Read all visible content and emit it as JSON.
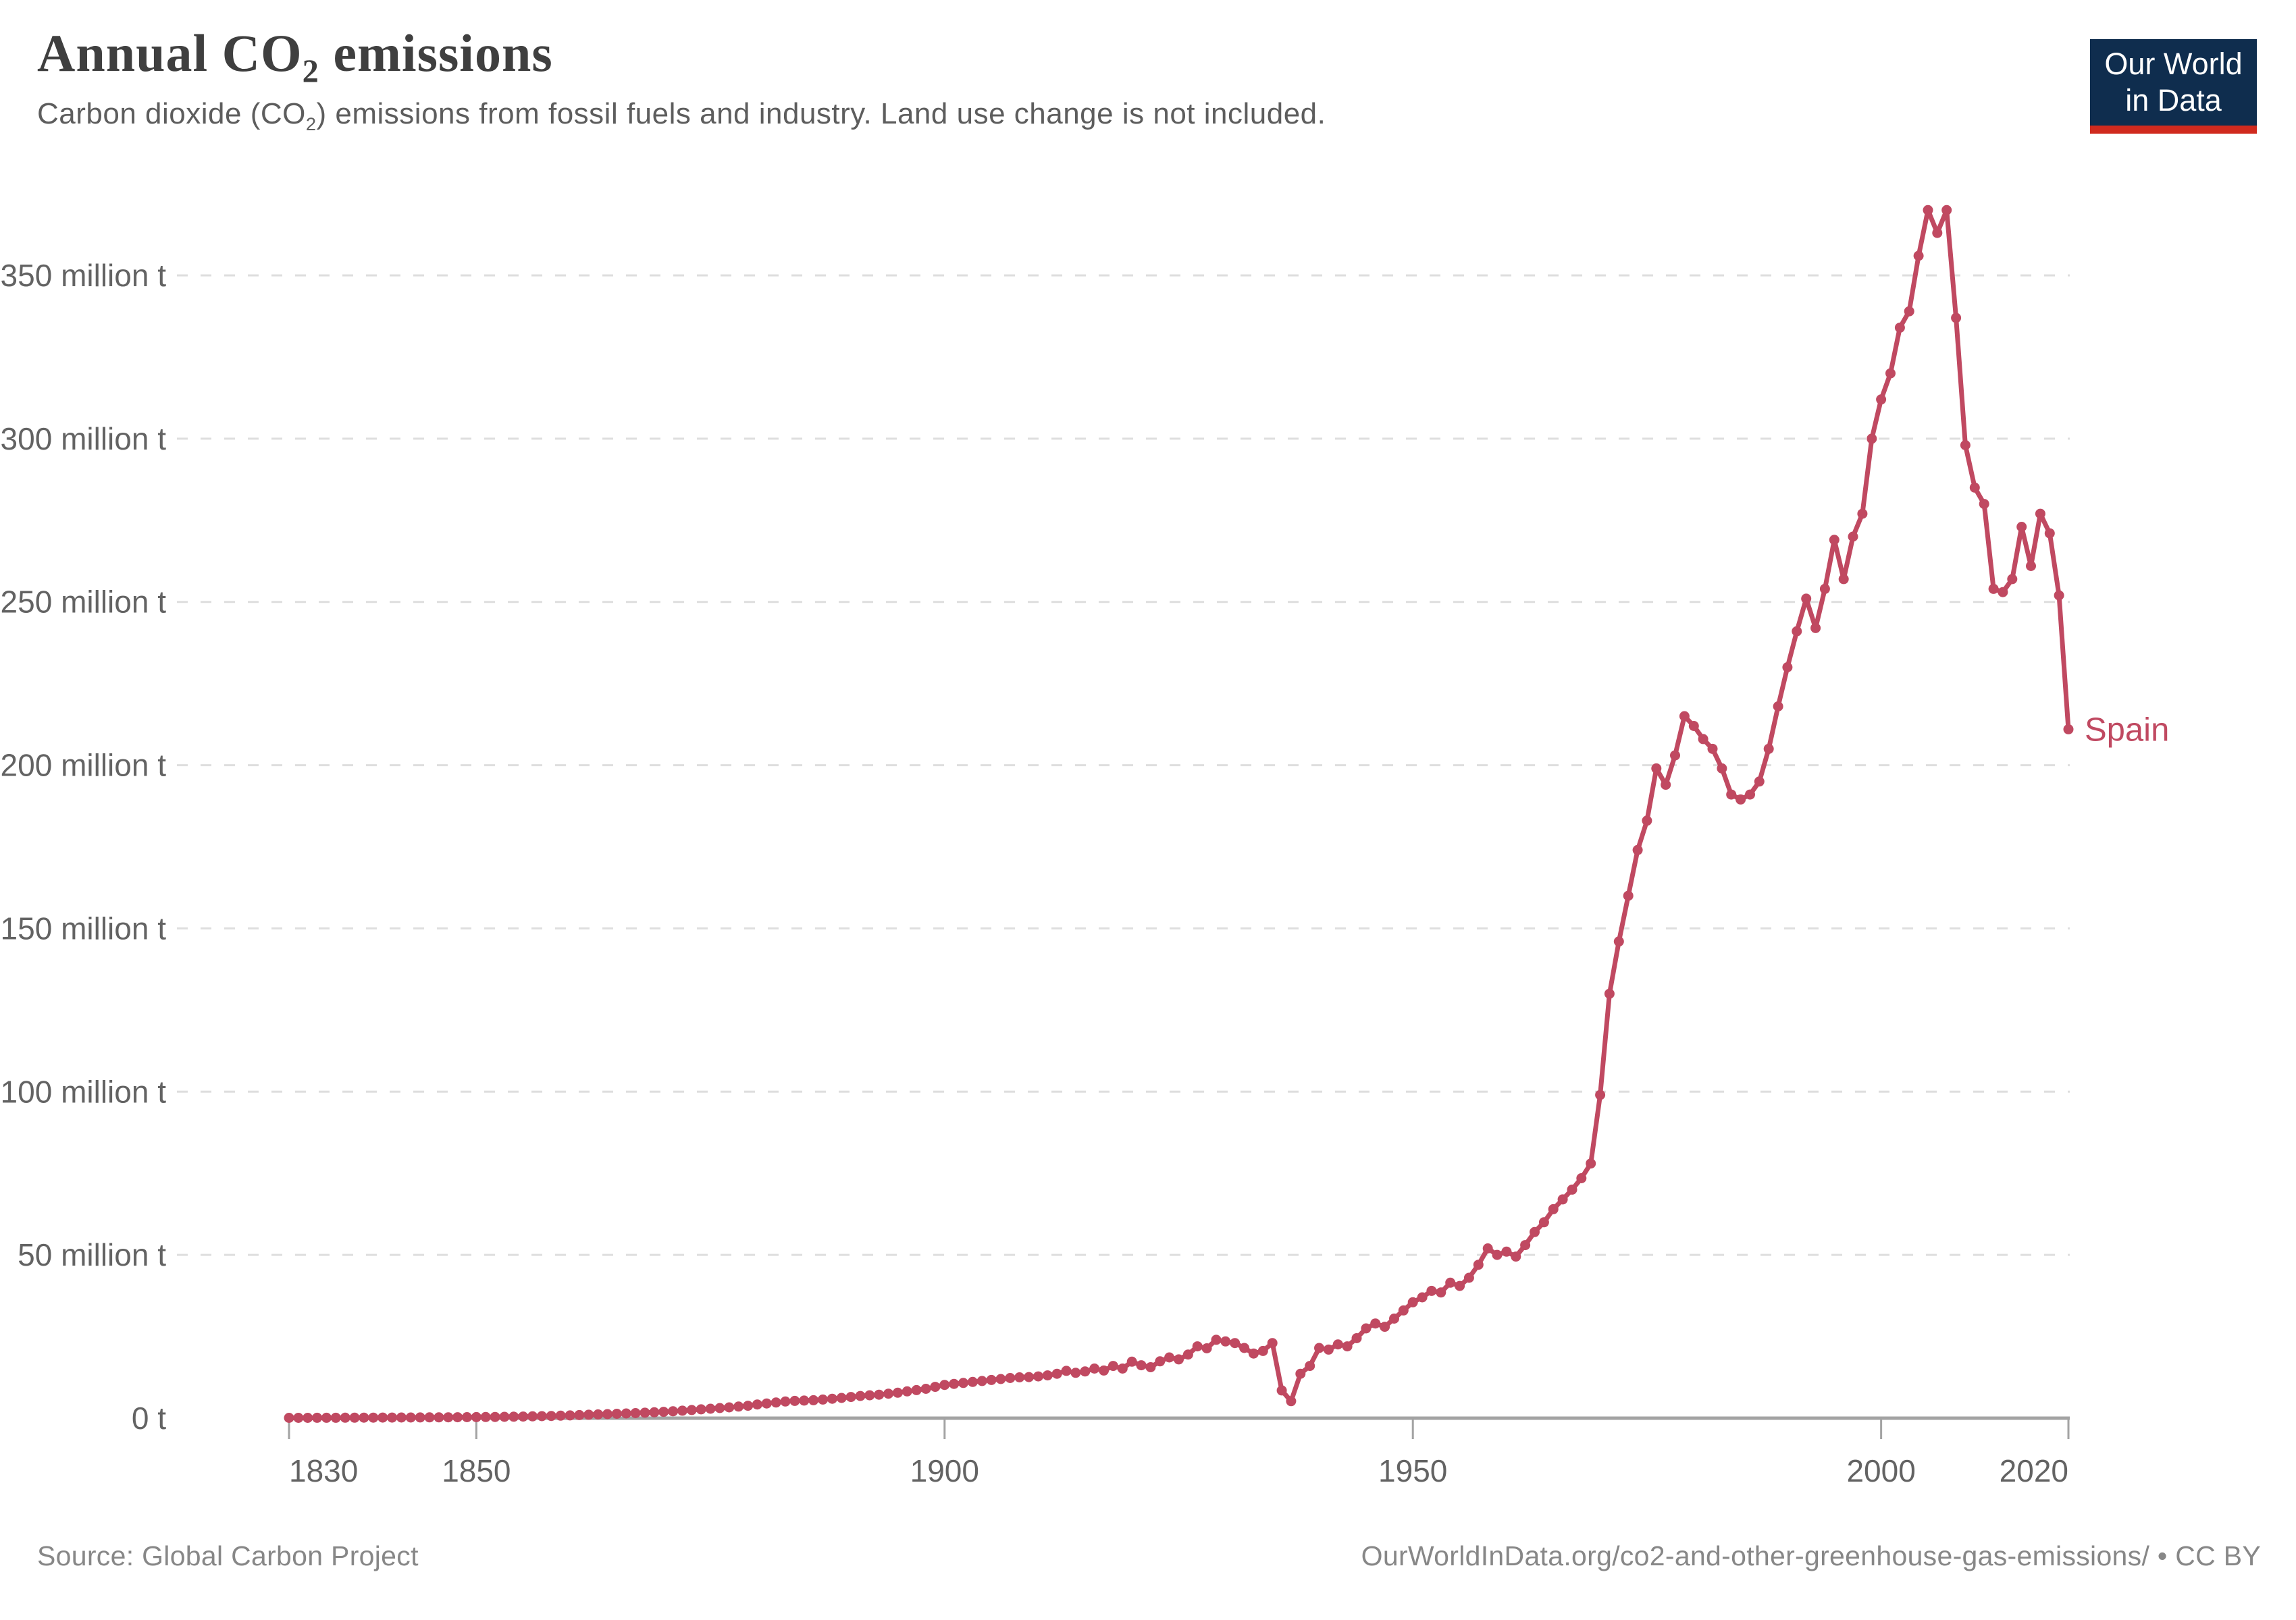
{
  "header": {
    "title": {
      "pre": "Annual CO",
      "sub": "2",
      "post": " emissions"
    },
    "subtitle": {
      "pre": "Carbon dioxide (CO",
      "sub": "2",
      "post": ") emissions from fossil fuels and industry. Land use change is not included."
    }
  },
  "logo": {
    "line1": "Our World",
    "line2": "in Data"
  },
  "footer": {
    "source": "Source: Global Carbon Project",
    "link": "OurWorldInData.org/co2-and-other-greenhouse-gas-emissions/ • CC BY"
  },
  "colors": {
    "series": "#c04961",
    "grid": "#dedede",
    "axis": "#a3a3a3",
    "tick_label": "#636363",
    "title": "#3f3f3f",
    "subtitle": "#5d5d5d",
    "footer": "#878787",
    "logo_bg": "#0f2d4e",
    "logo_accent": "#d02a1e"
  },
  "chart_data": {
    "type": "line",
    "title": "Annual CO2 emissions",
    "xlabel": "",
    "ylabel": "",
    "unit": "million tonnes CO2",
    "xlim": [
      1830,
      2020
    ],
    "ylim": [
      0,
      350
    ],
    "grid": "horizontal dashed",
    "legend_position": "end-of-line label",
    "xticks": [
      1830,
      1850,
      1900,
      1950,
      2000,
      2020
    ],
    "yticks": [
      0,
      50,
      100,
      150,
      200,
      250,
      300,
      350
    ],
    "ytick_labels": [
      "0 t",
      "50 million t",
      "100 million t",
      "150 million t",
      "200 million t",
      "250 million t",
      "300 million t",
      "350 million t"
    ],
    "end_label": "Spain",
    "series": [
      {
        "name": "Spain",
        "color": "#c04961",
        "points": [
          [
            1830,
            0.1
          ],
          [
            1831,
            0.1
          ],
          [
            1832,
            0.11
          ],
          [
            1833,
            0.12
          ],
          [
            1834,
            0.12
          ],
          [
            1835,
            0.13
          ],
          [
            1836,
            0.14
          ],
          [
            1837,
            0.15
          ],
          [
            1838,
            0.16
          ],
          [
            1839,
            0.17
          ],
          [
            1840,
            0.18
          ],
          [
            1841,
            0.19
          ],
          [
            1842,
            0.2
          ],
          [
            1843,
            0.21
          ],
          [
            1844,
            0.22
          ],
          [
            1845,
            0.24
          ],
          [
            1846,
            0.25
          ],
          [
            1847,
            0.27
          ],
          [
            1848,
            0.28
          ],
          [
            1849,
            0.3
          ],
          [
            1850,
            0.33
          ],
          [
            1851,
            0.35
          ],
          [
            1852,
            0.38
          ],
          [
            1853,
            0.41
          ],
          [
            1854,
            0.45
          ],
          [
            1855,
            0.5
          ],
          [
            1856,
            0.55
          ],
          [
            1857,
            0.61
          ],
          [
            1858,
            0.68
          ],
          [
            1859,
            0.76
          ],
          [
            1860,
            0.85
          ],
          [
            1861,
            0.95
          ],
          [
            1862,
            1.05
          ],
          [
            1863,
            1.15
          ],
          [
            1864,
            1.25
          ],
          [
            1865,
            1.35
          ],
          [
            1866,
            1.45
          ],
          [
            1867,
            1.55
          ],
          [
            1868,
            1.68
          ],
          [
            1869,
            1.8
          ],
          [
            1870,
            1.95
          ],
          [
            1871,
            2.1
          ],
          [
            1872,
            2.3
          ],
          [
            1873,
            2.5
          ],
          [
            1874,
            2.7
          ],
          [
            1875,
            2.9
          ],
          [
            1876,
            3.1
          ],
          [
            1877,
            3.3
          ],
          [
            1878,
            3.55
          ],
          [
            1879,
            3.8
          ],
          [
            1880,
            4.2
          ],
          [
            1881,
            4.5
          ],
          [
            1882,
            4.8
          ],
          [
            1883,
            5.1
          ],
          [
            1884,
            5.3
          ],
          [
            1885,
            5.4
          ],
          [
            1886,
            5.5
          ],
          [
            1887,
            5.7
          ],
          [
            1888,
            5.95
          ],
          [
            1889,
            6.2
          ],
          [
            1890,
            6.5
          ],
          [
            1891,
            6.8
          ],
          [
            1892,
            7.0
          ],
          [
            1893,
            7.2
          ],
          [
            1894,
            7.5
          ],
          [
            1895,
            7.8
          ],
          [
            1896,
            8.2
          ],
          [
            1897,
            8.6
          ],
          [
            1898,
            9.0
          ],
          [
            1899,
            9.6
          ],
          [
            1900,
            10.2
          ],
          [
            1901,
            10.5
          ],
          [
            1902,
            10.8
          ],
          [
            1903,
            11.1
          ],
          [
            1904,
            11.4
          ],
          [
            1905,
            11.7
          ],
          [
            1906,
            12.0
          ],
          [
            1907,
            12.3
          ],
          [
            1908,
            12.5
          ],
          [
            1909,
            12.6
          ],
          [
            1910,
            12.8
          ],
          [
            1911,
            13.1
          ],
          [
            1912,
            13.6
          ],
          [
            1913,
            14.5
          ],
          [
            1914,
            13.9
          ],
          [
            1915,
            14.3
          ],
          [
            1916,
            15.2
          ],
          [
            1917,
            14.6
          ],
          [
            1918,
            16.0
          ],
          [
            1919,
            15.2
          ],
          [
            1920,
            17.3
          ],
          [
            1921,
            16.2
          ],
          [
            1922,
            15.6
          ],
          [
            1923,
            17.4
          ],
          [
            1924,
            18.6
          ],
          [
            1925,
            18.0
          ],
          [
            1926,
            19.5
          ],
          [
            1927,
            22.0
          ],
          [
            1928,
            21.4
          ],
          [
            1929,
            24.0
          ],
          [
            1930,
            23.5
          ],
          [
            1931,
            23.0
          ],
          [
            1932,
            21.5
          ],
          [
            1933,
            19.8
          ],
          [
            1934,
            20.6
          ],
          [
            1935,
            23.0
          ],
          [
            1936,
            8.5
          ],
          [
            1937,
            5.2
          ],
          [
            1938,
            13.6
          ],
          [
            1939,
            16.0
          ],
          [
            1940,
            21.5
          ],
          [
            1941,
            21.0
          ],
          [
            1942,
            22.6
          ],
          [
            1943,
            22.0
          ],
          [
            1944,
            24.5
          ],
          [
            1945,
            27.5
          ],
          [
            1946,
            29.0
          ],
          [
            1947,
            28.0
          ],
          [
            1948,
            30.5
          ],
          [
            1949,
            33.0
          ],
          [
            1950,
            35.5
          ],
          [
            1951,
            37.0
          ],
          [
            1952,
            39.0
          ],
          [
            1953,
            38.5
          ],
          [
            1954,
            41.5
          ],
          [
            1955,
            40.5
          ],
          [
            1956,
            43.0
          ],
          [
            1957,
            47.0
          ],
          [
            1958,
            52.0
          ],
          [
            1959,
            50.0
          ],
          [
            1960,
            51.0
          ],
          [
            1961,
            49.5
          ],
          [
            1962,
            53.0
          ],
          [
            1963,
            57.0
          ],
          [
            1964,
            60.0
          ],
          [
            1965,
            64.0
          ],
          [
            1966,
            67.0
          ],
          [
            1967,
            70.0
          ],
          [
            1968,
            73.5
          ],
          [
            1969,
            78.0
          ],
          [
            1970,
            99.0
          ],
          [
            1971,
            130.0
          ],
          [
            1972,
            146.0
          ],
          [
            1973,
            160.0
          ],
          [
            1974,
            174.0
          ],
          [
            1975,
            183.0
          ],
          [
            1976,
            199.0
          ],
          [
            1977,
            194.0
          ],
          [
            1978,
            203.0
          ],
          [
            1979,
            215.0
          ],
          [
            1980,
            212.0
          ],
          [
            1981,
            208.0
          ],
          [
            1982,
            205.0
          ],
          [
            1983,
            199.0
          ],
          [
            1984,
            191.0
          ],
          [
            1985,
            189.5
          ],
          [
            1986,
            191.0
          ],
          [
            1987,
            195.0
          ],
          [
            1988,
            205.0
          ],
          [
            1989,
            218.0
          ],
          [
            1990,
            230.0
          ],
          [
            1991,
            241.0
          ],
          [
            1992,
            251.0
          ],
          [
            1993,
            242.0
          ],
          [
            1994,
            254.0
          ],
          [
            1995,
            269.0
          ],
          [
            1996,
            257.0
          ],
          [
            1997,
            270.0
          ],
          [
            1998,
            277.0
          ],
          [
            1999,
            300.0
          ],
          [
            2000,
            312.0
          ],
          [
            2001,
            320.0
          ],
          [
            2002,
            334.0
          ],
          [
            2003,
            339.0
          ],
          [
            2004,
            356.0
          ],
          [
            2005,
            370.0
          ],
          [
            2006,
            363.0
          ],
          [
            2007,
            370.0
          ],
          [
            2008,
            337.0
          ],
          [
            2009,
            298.0
          ],
          [
            2010,
            285.0
          ],
          [
            2011,
            280.0
          ],
          [
            2012,
            254.0
          ],
          [
            2013,
            253.0
          ],
          [
            2014,
            257.0
          ],
          [
            2015,
            273.0
          ],
          [
            2016,
            261.0
          ],
          [
            2017,
            277.0
          ],
          [
            2018,
            271.0
          ],
          [
            2019,
            252.0
          ],
          [
            2020,
            211.0
          ]
        ]
      }
    ]
  }
}
